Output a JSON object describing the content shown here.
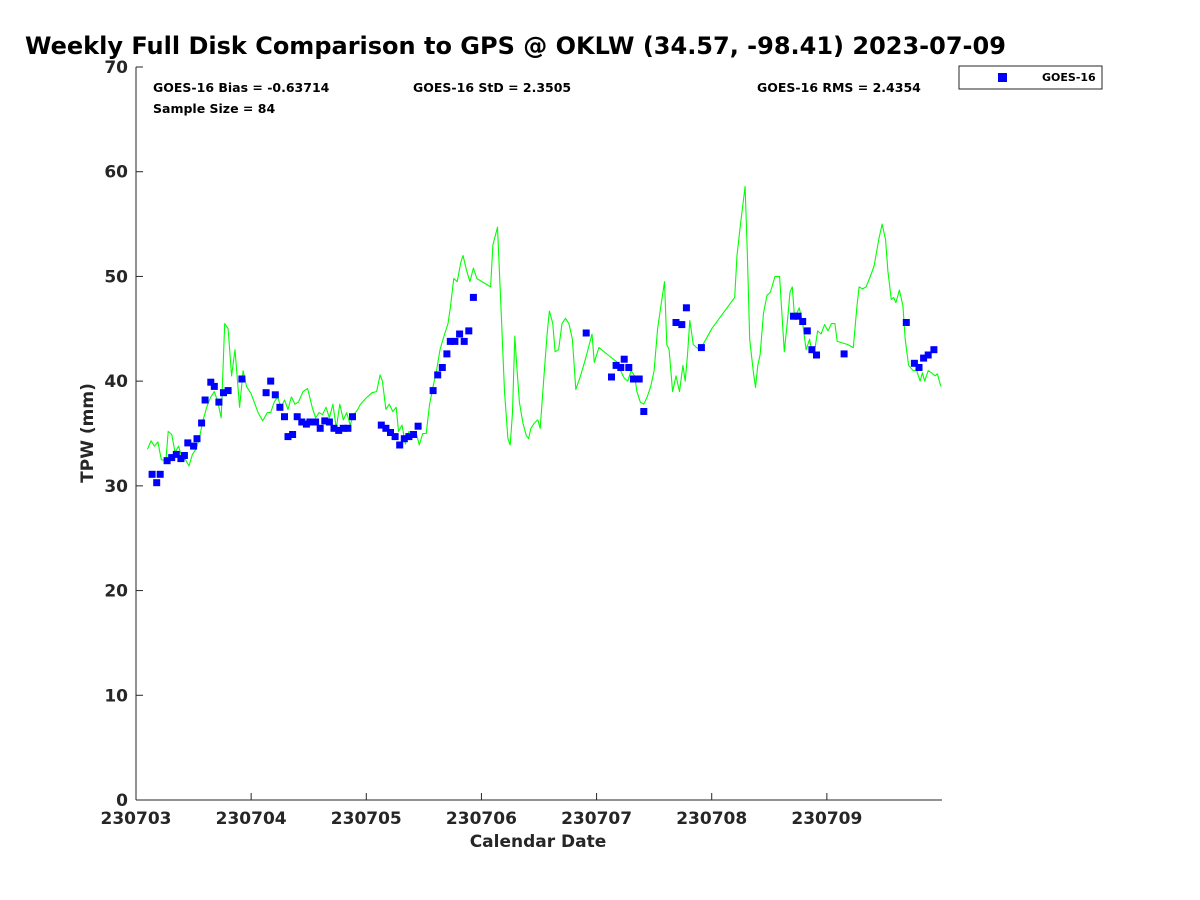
{
  "chart_data": {
    "type": "line",
    "title": "Weekly Full Disk Comparison to GPS @ OKLW (34.57, -98.41) 2023-07-09",
    "xlabel": "Calendar Date",
    "ylabel": "TPW (mm)",
    "xlim": [
      "230703",
      "230710"
    ],
    "ylim": [
      0,
      70
    ],
    "yticks": [
      0,
      10,
      20,
      30,
      40,
      50,
      60,
      70
    ],
    "xticks": [
      "230703",
      "230704",
      "230705",
      "230706",
      "230707",
      "230708",
      "230709"
    ],
    "grid": false,
    "legend_position": "top-right",
    "stats": {
      "bias": "GOES-16 Bias = -0.63714",
      "sample": "Sample Size = 84",
      "std": "GOES-16 StD = 2.3505",
      "rms": "GOES-16 RMS = 2.4354"
    },
    "gps_series": {
      "color": "#00ff00",
      "points": [
        [
          0.1,
          33.5
        ],
        [
          0.13,
          34.3
        ],
        [
          0.16,
          33.8
        ],
        [
          0.19,
          34.2
        ],
        [
          0.22,
          32.5
        ],
        [
          0.26,
          32.4
        ],
        [
          0.28,
          35.2
        ],
        [
          0.31,
          34.9
        ],
        [
          0.34,
          33.2
        ],
        [
          0.37,
          33.8
        ],
        [
          0.4,
          32.6
        ],
        [
          0.43,
          32.5
        ],
        [
          0.46,
          31.9
        ],
        [
          0.49,
          33.0
        ],
        [
          0.52,
          33.5
        ],
        [
          0.55,
          34.5
        ],
        [
          0.58,
          36.2
        ],
        [
          0.62,
          37.7
        ],
        [
          0.65,
          38.5
        ],
        [
          0.68,
          39.0
        ],
        [
          0.71,
          38.0
        ],
        [
          0.74,
          36.5
        ],
        [
          0.77,
          45.5
        ],
        [
          0.8,
          45.0
        ],
        [
          0.83,
          40.5
        ],
        [
          0.86,
          43.0
        ],
        [
          0.9,
          37.5
        ],
        [
          0.93,
          41.0
        ],
        [
          0.96,
          39.5
        ],
        [
          1.0,
          38.8
        ],
        [
          1.06,
          37.0
        ],
        [
          1.1,
          36.2
        ],
        [
          1.14,
          37.0
        ],
        [
          1.17,
          37.0
        ],
        [
          1.2,
          38.0
        ],
        [
          1.23,
          38.5
        ],
        [
          1.26,
          37.5
        ],
        [
          1.29,
          38.2
        ],
        [
          1.32,
          37.3
        ],
        [
          1.35,
          38.5
        ],
        [
          1.38,
          37.8
        ],
        [
          1.41,
          38.0
        ],
        [
          1.45,
          39.0
        ],
        [
          1.49,
          39.3
        ],
        [
          1.53,
          37.5
        ],
        [
          1.56,
          36.5
        ],
        [
          1.59,
          37.0
        ],
        [
          1.62,
          36.8
        ],
        [
          1.65,
          37.5
        ],
        [
          1.68,
          36.5
        ],
        [
          1.71,
          37.8
        ],
        [
          1.74,
          35.5
        ],
        [
          1.77,
          37.8
        ],
        [
          1.8,
          36.3
        ],
        [
          1.83,
          37.0
        ],
        [
          1.86,
          35.8
        ],
        [
          1.89,
          36.8
        ],
        [
          1.92,
          37.2
        ],
        [
          1.95,
          37.8
        ],
        [
          2.0,
          38.4
        ],
        [
          2.05,
          38.9
        ],
        [
          2.09,
          39.0
        ],
        [
          2.12,
          40.6
        ],
        [
          2.14,
          40.0
        ],
        [
          2.17,
          37.3
        ],
        [
          2.2,
          37.8
        ],
        [
          2.23,
          37.1
        ],
        [
          2.26,
          37.5
        ],
        [
          2.28,
          35.2
        ],
        [
          2.31,
          35.8
        ],
        [
          2.34,
          34.0
        ],
        [
          2.37,
          35.2
        ],
        [
          2.4,
          34.9
        ],
        [
          2.43,
          35.2
        ],
        [
          2.46,
          33.9
        ],
        [
          2.49,
          35.0
        ],
        [
          2.52,
          35.0
        ],
        [
          2.55,
          37.8
        ],
        [
          2.58,
          39.5
        ],
        [
          2.61,
          41.0
        ],
        [
          2.64,
          43.0
        ],
        [
          2.68,
          44.5
        ],
        [
          2.71,
          45.5
        ],
        [
          2.73,
          47.0
        ],
        [
          2.76,
          49.8
        ],
        [
          2.79,
          49.5
        ],
        [
          2.82,
          51.3
        ],
        [
          2.84,
          52.0
        ],
        [
          2.87,
          50.6
        ],
        [
          2.9,
          49.5
        ],
        [
          2.93,
          50.8
        ],
        [
          2.96,
          49.8
        ],
        [
          3.08,
          49.0
        ],
        [
          3.1,
          53.0
        ],
        [
          3.14,
          54.7
        ],
        [
          3.17,
          47.0
        ],
        [
          3.2,
          39.0
        ],
        [
          3.23,
          34.5
        ],
        [
          3.25,
          33.9
        ],
        [
          3.27,
          37.0
        ],
        [
          3.29,
          44.3
        ],
        [
          3.31,
          41.0
        ],
        [
          3.33,
          38.0
        ],
        [
          3.36,
          36.0
        ],
        [
          3.39,
          34.8
        ],
        [
          3.41,
          34.5
        ],
        [
          3.43,
          35.5
        ],
        [
          3.46,
          36.0
        ],
        [
          3.49,
          36.3
        ],
        [
          3.51,
          35.5
        ],
        [
          3.54,
          40.0
        ],
        [
          3.57,
          44.5
        ],
        [
          3.59,
          46.7
        ],
        [
          3.62,
          45.5
        ],
        [
          3.64,
          42.8
        ],
        [
          3.67,
          43.0
        ],
        [
          3.7,
          45.5
        ],
        [
          3.73,
          46.0
        ],
        [
          3.76,
          45.5
        ],
        [
          3.79,
          44.0
        ],
        [
          3.82,
          39.2
        ],
        [
          3.86,
          40.5
        ],
        [
          3.9,
          42.0
        ],
        [
          3.93,
          43.2
        ],
        [
          3.96,
          44.5
        ],
        [
          3.98,
          41.8
        ],
        [
          4.0,
          42.5
        ],
        [
          4.02,
          43.2
        ],
        [
          4.1,
          42.5
        ],
        [
          4.18,
          41.8
        ],
        [
          4.2,
          41.2
        ],
        [
          4.24,
          40.3
        ],
        [
          4.27,
          40.0
        ],
        [
          4.3,
          41.0
        ],
        [
          4.33,
          40.5
        ],
        [
          4.35,
          39.0
        ],
        [
          4.38,
          38.0
        ],
        [
          4.41,
          37.8
        ],
        [
          4.44,
          38.5
        ],
        [
          4.47,
          39.5
        ],
        [
          4.5,
          41.0
        ],
        [
          4.53,
          45.0
        ],
        [
          4.56,
          47.3
        ],
        [
          4.59,
          49.5
        ],
        [
          4.61,
          43.5
        ],
        [
          4.63,
          43.0
        ],
        [
          4.66,
          39.0
        ],
        [
          4.69,
          40.5
        ],
        [
          4.72,
          39.0
        ],
        [
          4.75,
          41.5
        ],
        [
          4.77,
          40.0
        ],
        [
          4.79,
          42.5
        ],
        [
          4.81,
          45.8
        ],
        [
          4.84,
          43.5
        ],
        [
          4.87,
          43.2
        ],
        [
          4.9,
          43.0
        ],
        [
          5.0,
          45.0
        ],
        [
          5.1,
          46.5
        ],
        [
          5.2,
          48.0
        ],
        [
          5.22,
          52.0
        ],
        [
          5.25,
          55.0
        ],
        [
          5.29,
          58.6
        ],
        [
          5.31,
          52.0
        ],
        [
          5.33,
          44.0
        ],
        [
          5.36,
          41.0
        ],
        [
          5.38,
          39.4
        ],
        [
          5.4,
          41.5
        ],
        [
          5.42,
          42.5
        ],
        [
          5.45,
          46.5
        ],
        [
          5.48,
          48.2
        ],
        [
          5.51,
          48.5
        ],
        [
          5.55,
          50.0
        ],
        [
          5.59,
          50.0
        ],
        [
          5.63,
          42.8
        ],
        [
          5.66,
          46.0
        ],
        [
          5.68,
          48.5
        ],
        [
          5.7,
          49.0
        ],
        [
          5.72,
          46.0
        ],
        [
          5.74,
          46.5
        ],
        [
          5.76,
          47.0
        ],
        [
          5.79,
          45.5
        ],
        [
          5.82,
          43.0
        ],
        [
          5.85,
          44.0
        ],
        [
          5.87,
          42.8
        ],
        [
          5.9,
          43.3
        ],
        [
          5.92,
          44.8
        ],
        [
          5.95,
          44.5
        ],
        [
          5.98,
          45.4
        ],
        [
          6.01,
          44.8
        ],
        [
          6.04,
          45.5
        ],
        [
          6.07,
          45.5
        ],
        [
          6.09,
          43.8
        ],
        [
          6.18,
          43.5
        ],
        [
          6.23,
          43.2
        ],
        [
          6.26,
          47.0
        ],
        [
          6.28,
          49.0
        ],
        [
          6.31,
          48.8
        ],
        [
          6.34,
          49.0
        ],
        [
          6.37,
          49.8
        ],
        [
          6.41,
          51.0
        ],
        [
          6.45,
          53.5
        ],
        [
          6.48,
          55.0
        ],
        [
          6.51,
          53.5
        ],
        [
          6.53,
          50.5
        ],
        [
          6.56,
          47.8
        ],
        [
          6.58,
          48.0
        ],
        [
          6.6,
          47.5
        ],
        [
          6.63,
          48.7
        ],
        [
          6.66,
          47.2
        ],
        [
          6.68,
          44.0
        ],
        [
          6.71,
          41.5
        ],
        [
          6.75,
          41.0
        ],
        [
          6.78,
          41.0
        ],
        [
          6.81,
          40.0
        ],
        [
          6.83,
          40.8
        ],
        [
          6.85,
          40.0
        ],
        [
          6.88,
          41.0
        ],
        [
          6.91,
          40.8
        ],
        [
          6.94,
          40.5
        ],
        [
          6.96,
          40.7
        ],
        [
          6.99,
          39.5
        ]
      ]
    },
    "goes16_series": {
      "name": "GOES-16",
      "color": "#0000ff",
      "points": [
        [
          0.14,
          31.1
        ],
        [
          0.18,
          30.3
        ],
        [
          0.21,
          31.1
        ],
        [
          0.27,
          32.4
        ],
        [
          0.31,
          32.7
        ],
        [
          0.35,
          33.0
        ],
        [
          0.39,
          32.6
        ],
        [
          0.42,
          32.9
        ],
        [
          0.45,
          34.1
        ],
        [
          0.5,
          33.8
        ],
        [
          0.53,
          34.5
        ],
        [
          0.57,
          36.0
        ],
        [
          0.6,
          38.2
        ],
        [
          0.65,
          39.9
        ],
        [
          0.68,
          39.5
        ],
        [
          0.72,
          38.0
        ],
        [
          0.76,
          38.9
        ],
        [
          0.8,
          39.1
        ],
        [
          0.92,
          40.2
        ],
        [
          1.13,
          38.9
        ],
        [
          1.17,
          40.0
        ],
        [
          1.21,
          38.7
        ],
        [
          1.25,
          37.5
        ],
        [
          1.29,
          36.6
        ],
        [
          1.32,
          34.7
        ],
        [
          1.36,
          34.9
        ],
        [
          1.4,
          36.6
        ],
        [
          1.44,
          36.1
        ],
        [
          1.48,
          35.9
        ],
        [
          1.51,
          36.1
        ],
        [
          1.56,
          36.1
        ],
        [
          1.6,
          35.5
        ],
        [
          1.64,
          36.2
        ],
        [
          1.68,
          36.1
        ],
        [
          1.72,
          35.5
        ],
        [
          1.76,
          35.3
        ],
        [
          1.8,
          35.5
        ],
        [
          1.84,
          35.5
        ],
        [
          1.88,
          36.6
        ],
        [
          2.13,
          35.8
        ],
        [
          2.17,
          35.5
        ],
        [
          2.21,
          35.1
        ],
        [
          2.25,
          34.7
        ],
        [
          2.29,
          33.9
        ],
        [
          2.33,
          34.5
        ],
        [
          2.37,
          34.7
        ],
        [
          2.41,
          34.9
        ],
        [
          2.45,
          35.7
        ],
        [
          2.58,
          39.1
        ],
        [
          2.62,
          40.6
        ],
        [
          2.66,
          41.3
        ],
        [
          2.7,
          42.6
        ],
        [
          2.73,
          43.8
        ],
        [
          2.77,
          43.8
        ],
        [
          2.81,
          44.5
        ],
        [
          2.85,
          43.8
        ],
        [
          2.89,
          44.8
        ],
        [
          2.93,
          48.0
        ],
        [
          3.91,
          44.6
        ],
        [
          4.13,
          40.4
        ],
        [
          4.17,
          41.5
        ],
        [
          4.21,
          41.3
        ],
        [
          4.24,
          42.1
        ],
        [
          4.28,
          41.3
        ],
        [
          4.32,
          40.2
        ],
        [
          4.37,
          40.2
        ],
        [
          4.41,
          37.1
        ],
        [
          4.69,
          45.6
        ],
        [
          4.74,
          45.4
        ],
        [
          4.78,
          47.0
        ],
        [
          4.91,
          43.2
        ],
        [
          5.71,
          46.2
        ],
        [
          5.75,
          46.2
        ],
        [
          5.79,
          45.7
        ],
        [
          5.83,
          44.8
        ],
        [
          5.87,
          43.0
        ],
        [
          5.91,
          42.5
        ],
        [
          6.15,
          42.6
        ],
        [
          6.69,
          45.6
        ],
        [
          6.76,
          41.7
        ],
        [
          6.8,
          41.3
        ],
        [
          6.84,
          42.2
        ],
        [
          6.88,
          42.5
        ],
        [
          6.93,
          43.0
        ]
      ]
    }
  },
  "legend": {
    "label": "GOES-16",
    "color": "#0000ff"
  }
}
